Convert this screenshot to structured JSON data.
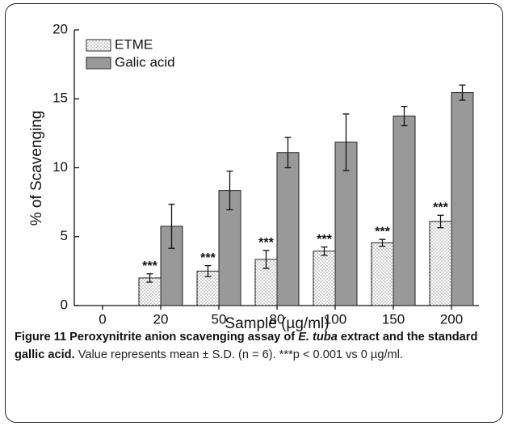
{
  "chart_data": {
    "type": "bar",
    "xlabel": "Sample (µg/ml)",
    "ylabel": "% of Scavenging",
    "categories": [
      "0",
      "20",
      "50",
      "80",
      "100",
      "150",
      "200"
    ],
    "series": [
      {
        "name": "ETME",
        "color": "#ffffff",
        "pattern": "dots",
        "values": [
          null,
          2.0,
          2.5,
          3.35,
          3.95,
          4.55,
          6.1
        ],
        "errors": [
          null,
          0.3,
          0.4,
          0.65,
          0.3,
          0.25,
          0.45
        ],
        "annotations": [
          null,
          "***",
          "***",
          "***",
          "***",
          "***",
          "***"
        ]
      },
      {
        "name": "Galic acid",
        "color": "#999999",
        "values": [
          null,
          5.75,
          8.35,
          11.1,
          11.85,
          13.75,
          15.45
        ],
        "errors": [
          null,
          1.6,
          1.4,
          1.1,
          2.05,
          0.7,
          0.55
        ]
      }
    ],
    "ylim": [
      0,
      20
    ],
    "yticks": [
      0,
      5,
      10,
      15,
      20
    ],
    "legend": "upper left",
    "grid": false
  },
  "caption": {
    "title_before": "Figure 11 Peroxynitrite anion scavenging assay of ",
    "title_italic": "E. tuba",
    "title_after": " extract and the standard gallic acid.",
    "note": "Value represents mean ± S.D. (n = 6). ***p < 0.001 vs 0 µg/ml."
  }
}
